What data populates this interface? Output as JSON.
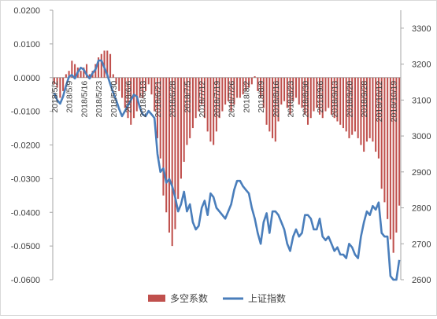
{
  "chart_data": {
    "type": "bar+line",
    "title": "",
    "colors": {
      "bar": "#c0504d",
      "line": "#4a7ebb",
      "axis": "#a6a6a6",
      "text": "#404040"
    },
    "y_left": {
      "lim": [
        -0.06,
        0.02
      ],
      "ticks": [
        0.02,
        0.01,
        0.0,
        -0.01,
        -0.02,
        -0.03,
        -0.04,
        -0.05,
        -0.06
      ],
      "tick_labels": [
        "0.0200",
        "0.0100",
        "0.0000",
        "-0.0100",
        "-0.0200",
        "-0.0300",
        "-0.0400",
        "-0.0500",
        "-0.0600"
      ]
    },
    "y_right": {
      "lim": [
        2600,
        3350
      ],
      "ticks": [
        3300,
        3200,
        3100,
        3000,
        2900,
        2800,
        2700,
        2600
      ],
      "tick_labels": [
        "3300",
        "3200",
        "3100",
        "3000",
        "2900",
        "2800",
        "2700",
        "2600"
      ]
    },
    "x_tick_labels": [
      "2018/5/2",
      "2018/5/9",
      "2018/5/16",
      "2018/5/23",
      "2018/5/30",
      "2018/6/6",
      "2018/6/13",
      "2018/6/21",
      "2018/6/28",
      "2018/7/5",
      "2018/7/12",
      "2018/7/19",
      "2018/7/26",
      "2018/8/2",
      "2018/8/9",
      "2018/8/16",
      "2018/8/23",
      "2018/8/30",
      "2018/9/6",
      "2018/9/13",
      "2018/9/20",
      "2018/9/28",
      "2018/10/12",
      "2018/10/19"
    ],
    "x_tick_index": [
      0,
      5,
      10,
      15,
      20,
      25,
      30,
      35,
      40,
      45,
      50,
      55,
      60,
      65,
      70,
      75,
      80,
      85,
      90,
      95,
      100,
      105,
      110,
      115
    ],
    "n_points": 118,
    "series": [
      {
        "name": "多空系数",
        "type": "bar",
        "axis": "left",
        "values": [
          -0.002,
          -0.003,
          -0.006,
          -0.004,
          0.001,
          0.002,
          0.005,
          0.004,
          0.003,
          0.002,
          0.003,
          0.004,
          0.001,
          0.002,
          0.004,
          0.006,
          0.007,
          0.008,
          0.008,
          0.007,
          0.001,
          -0.002,
          -0.004,
          -0.006,
          -0.009,
          -0.012,
          -0.014,
          -0.012,
          -0.01,
          -0.006,
          -0.006,
          -0.004,
          -0.002,
          -0.005,
          -0.01,
          -0.018,
          -0.024,
          -0.035,
          -0.04,
          -0.046,
          -0.05,
          -0.045,
          -0.036,
          -0.03,
          -0.025,
          -0.02,
          -0.018,
          -0.015,
          -0.012,
          -0.01,
          -0.008,
          -0.012,
          -0.016,
          -0.019,
          -0.02,
          -0.016,
          -0.012,
          -0.01,
          -0.008,
          -0.007,
          -0.01,
          -0.008,
          -0.006,
          -0.006,
          -0.005,
          -0.004,
          -0.003,
          -0.002,
          0.0004,
          -0.004,
          -0.006,
          -0.009,
          -0.014,
          -0.016,
          -0.018,
          -0.019,
          -0.013,
          -0.008,
          -0.007,
          -0.009,
          -0.011,
          -0.007,
          -0.006,
          -0.008,
          -0.009,
          -0.011,
          -0.014,
          -0.012,
          -0.01,
          -0.009,
          -0.011,
          -0.012,
          -0.01,
          -0.009,
          -0.011,
          -0.012,
          -0.013,
          -0.014,
          -0.015,
          -0.016,
          -0.018,
          -0.017,
          -0.016,
          -0.018,
          -0.02,
          -0.022,
          -0.019,
          -0.018,
          -0.019,
          -0.022,
          -0.024,
          -0.033,
          -0.037,
          -0.042,
          -0.048,
          -0.052,
          -0.046,
          -0.038
        ]
      },
      {
        "name": "上证指数",
        "type": "line",
        "axis": "right",
        "values": [
          3120,
          3100,
          3090,
          3110,
          3140,
          3165,
          3170,
          3160,
          3178,
          3190,
          3185,
          3170,
          3160,
          3175,
          3185,
          3210,
          3210,
          3190,
          3170,
          3145,
          3120,
          3100,
          3075,
          3055,
          3070,
          3085,
          3100,
          3115,
          3110,
          3080,
          3060,
          3055,
          3070,
          3060,
          3050,
          2950,
          2900,
          2910,
          2870,
          2880,
          2860,
          2830,
          2790,
          2810,
          2845,
          2790,
          2810,
          2760,
          2740,
          2750,
          2800,
          2820,
          2780,
          2840,
          2830,
          2800,
          2790,
          2780,
          2770,
          2790,
          2810,
          2850,
          2875,
          2875,
          2860,
          2850,
          2840,
          2800,
          2770,
          2730,
          2700,
          2760,
          2785,
          2730,
          2790,
          2790,
          2780,
          2760,
          2740,
          2700,
          2680,
          2720,
          2740,
          2720,
          2730,
          2780,
          2780,
          2770,
          2740,
          2740,
          2770,
          2720,
          2710,
          2720,
          2700,
          2680,
          2690,
          2670,
          2670,
          2660,
          2700,
          2690,
          2670,
          2660,
          2720,
          2760,
          2790,
          2780,
          2805,
          2795,
          2815,
          2730,
          2720,
          2720,
          2610,
          2600,
          2600,
          2655
        ]
      }
    ],
    "legend": {
      "placement": "bottom-center"
    },
    "grid": false
  }
}
